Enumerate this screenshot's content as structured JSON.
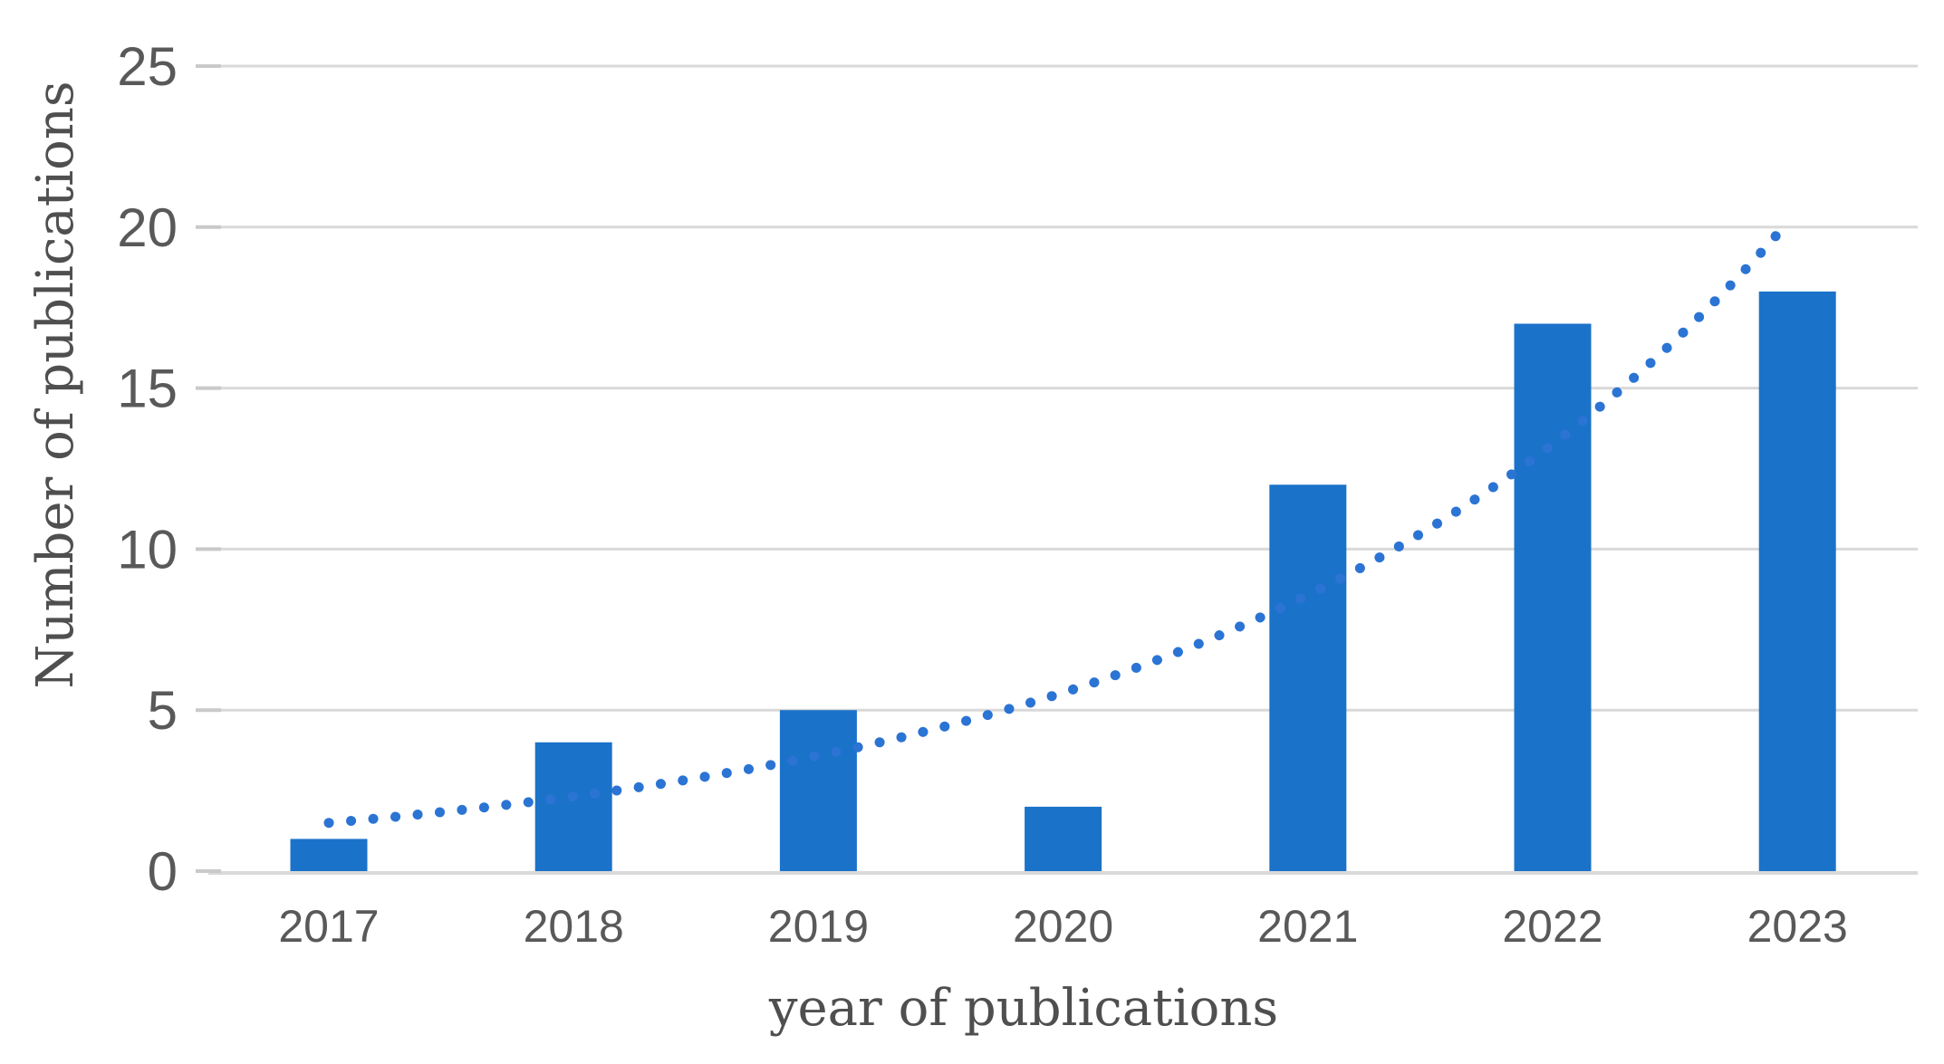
{
  "chart_data": {
    "type": "bar",
    "title": "",
    "categories": [
      "2017",
      "2018",
      "2019",
      "2020",
      "2021",
      "2022",
      "2023"
    ],
    "series": [
      {
        "name": "Number of publications",
        "values": [
          1,
          4,
          5,
          2,
          12,
          17,
          18
        ]
      }
    ],
    "trendline": {
      "shape": "exponential",
      "style": "dotted",
      "start_value": 1.5,
      "end_value": 20.5
    },
    "xlabel": "year of publications",
    "ylabel": "Number of publications",
    "yticks": [
      0,
      5,
      10,
      15,
      20,
      25
    ],
    "ylim": [
      0,
      25
    ],
    "grid": "horizontal-only",
    "legend_position": "none",
    "colors": {
      "bar": "#1b72c9",
      "trend": "#2b74d4",
      "grid": "#d9d9d9",
      "baseline": "#d9d9d9",
      "tick_mark": "#c9c9c9",
      "tick_label": "#595959",
      "axis_title": "#4f4f4f",
      "background": "#ffffff"
    }
  }
}
